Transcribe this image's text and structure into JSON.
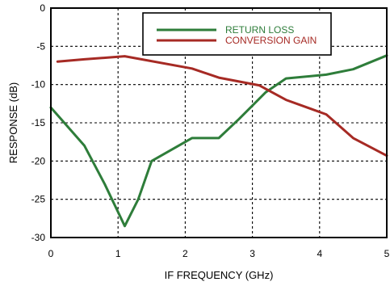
{
  "chart_data": {
    "type": "line",
    "title": "",
    "xlabel": "IF FREQUENCY (GHz)",
    "ylabel": "RESPONSE (dB)",
    "xlim": [
      0,
      5
    ],
    "ylim": [
      -30,
      0
    ],
    "x_ticks": [
      "0",
      "1",
      "2",
      "3",
      "4",
      "5"
    ],
    "y_ticks": [
      "0",
      "-5",
      "-10",
      "-15",
      "-20",
      "-25",
      "-30"
    ],
    "grid": true,
    "legend_position": "top-right",
    "series": [
      {
        "name": "RETURN LOSS",
        "color": "#2e7d3a",
        "points": [
          [
            0,
            -13
          ],
          [
            0.1,
            -14
          ],
          [
            0.5,
            -18
          ],
          [
            0.8,
            -23
          ],
          [
            1.1,
            -28.5
          ],
          [
            1.3,
            -25
          ],
          [
            1.5,
            -20
          ],
          [
            2.1,
            -17
          ],
          [
            2.5,
            -17
          ],
          [
            2.8,
            -14.5
          ],
          [
            3.2,
            -11
          ],
          [
            3.5,
            -9.2
          ],
          [
            4.1,
            -8.7
          ],
          [
            4.5,
            -8
          ],
          [
            5,
            -6.2
          ]
        ]
      },
      {
        "name": "CONVERSION GAIN",
        "color": "#a62a24",
        "points": [
          [
            0.1,
            -7
          ],
          [
            0.5,
            -6.7
          ],
          [
            1.1,
            -6.3
          ],
          [
            2.1,
            -7.9
          ],
          [
            2.5,
            -9.1
          ],
          [
            3.1,
            -10.1
          ],
          [
            3.5,
            -12
          ],
          [
            4.1,
            -13.9
          ],
          [
            4.5,
            -17
          ],
          [
            5,
            -19.3
          ]
        ]
      }
    ]
  }
}
